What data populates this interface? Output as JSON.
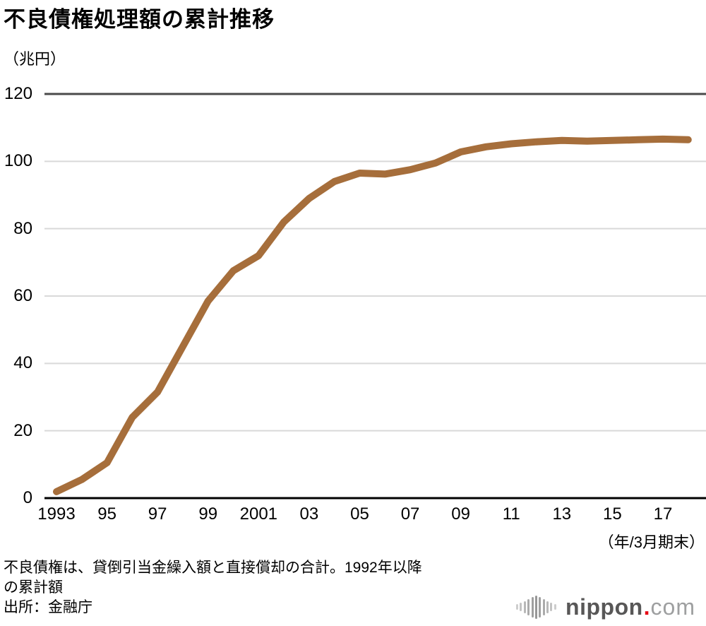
{
  "header": {
    "title": "不良債権処理額の累計推移"
  },
  "chart_data": {
    "type": "line",
    "title": "不良債権処理額の累計推移",
    "series_name": "不良債権処理額の累計",
    "y_unit": "（兆円）",
    "x_axis_note": "（年/3月期末）",
    "x": [
      1993,
      1994,
      1995,
      1996,
      1997,
      1998,
      1999,
      2000,
      2001,
      2002,
      2003,
      2004,
      2005,
      2006,
      2007,
      2008,
      2009,
      2010,
      2011,
      2012,
      2013,
      2014,
      2015,
      2016,
      2017,
      2018
    ],
    "values": [
      1.9,
      5.5,
      10.5,
      24,
      31.5,
      45,
      58.5,
      67.5,
      72,
      82,
      89,
      94,
      96.5,
      96.2,
      97.5,
      99.5,
      102.8,
      104.3,
      105.2,
      105.8,
      106.2,
      106.0,
      106.2,
      106.4,
      106.6,
      106.4
    ],
    "ylim": [
      0,
      120
    ],
    "y_ticks": [
      0,
      20,
      40,
      60,
      80,
      100,
      120
    ],
    "x_tick_years": [
      1993,
      1995,
      1997,
      1999,
      2001,
      2003,
      2005,
      2007,
      2009,
      2011,
      2013,
      2015,
      2017
    ],
    "x_tick_labels": [
      "1993",
      "95",
      "97",
      "99",
      "2001",
      "03",
      "05",
      "07",
      "09",
      "11",
      "13",
      "15",
      "17"
    ],
    "grid": true,
    "legend": "none",
    "line_color": "#A66E3B",
    "grid_color": "#d9d9d9",
    "top_line_color": "#4a4a4a",
    "base_line_color": "#000000"
  },
  "footer": {
    "note_line1": "不良債権は、貸倒引当金繰入額と直接償却の合計。1992年以降",
    "note_line2": "の累計額",
    "source": "出所：金融庁",
    "logo": {
      "name": "nippon",
      "dot": ".",
      "domain": "com",
      "name_color": "#585757",
      "dot_color": "#e60012",
      "domain_color": "#9e9fa0"
    }
  }
}
